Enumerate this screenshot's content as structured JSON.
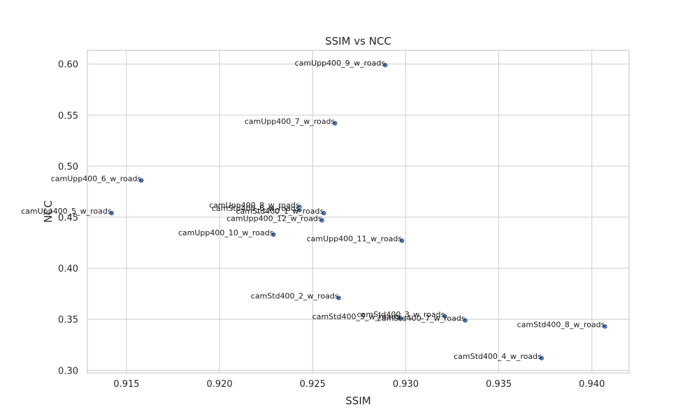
{
  "chart_data": {
    "type": "scatter",
    "title": "SSIM vs NCC",
    "xlabel": "SSIM",
    "ylabel": "NCC",
    "xlim": [
      0.9129,
      0.942
    ],
    "ylim": [
      0.2975,
      0.6135
    ],
    "xticks": [
      0.915,
      0.92,
      0.925,
      0.93,
      0.935,
      0.94
    ],
    "xtick_labels": [
      "0.915",
      "0.920",
      "0.925",
      "0.930",
      "0.935",
      "0.940"
    ],
    "yticks": [
      0.3,
      0.35,
      0.4,
      0.45,
      0.5,
      0.55,
      0.6
    ],
    "ytick_labels": [
      "0.30",
      "0.35",
      "0.40",
      "0.45",
      "0.50",
      "0.55",
      "0.60"
    ],
    "grid": true,
    "marker_color": "#4c72b0",
    "points": [
      {
        "label": "camUpp400_9_w_roads",
        "x": 0.9289,
        "y": 0.599
      },
      {
        "label": "camUpp400_7_w_roads",
        "x": 0.9262,
        "y": 0.542
      },
      {
        "label": "camUpp400_6_w_roads",
        "x": 0.9158,
        "y": 0.486
      },
      {
        "label": "camUpp400_8_w_roads",
        "x": 0.9243,
        "y": 0.46
      },
      {
        "label": "camStd400_6_w_roads",
        "x": 0.9243,
        "y": 0.457
      },
      {
        "label": "camStd400_1_w_roads",
        "x": 0.9256,
        "y": 0.454
      },
      {
        "label": "camUpp400_5_w_roads",
        "x": 0.9142,
        "y": 0.454
      },
      {
        "label": "camUpp400_12_w_roads",
        "x": 0.9255,
        "y": 0.447
      },
      {
        "label": "camUpp400_10_w_roads",
        "x": 0.9229,
        "y": 0.433
      },
      {
        "label": "camUpp400_11_w_roads",
        "x": 0.9298,
        "y": 0.427
      },
      {
        "label": "camStd400_2_w_roads",
        "x": 0.9264,
        "y": 0.371
      },
      {
        "label": "camStd400_3_w_roads",
        "x": 0.9321,
        "y": 0.353
      },
      {
        "label": "camStd400_5_w_roads",
        "x": 0.9297,
        "y": 0.351
      },
      {
        "label": "camStd400_7_w_roads",
        "x": 0.9332,
        "y": 0.349
      },
      {
        "label": "camStd400_8_w_roads",
        "x": 0.9407,
        "y": 0.343
      },
      {
        "label": "camStd400_4_w_roads",
        "x": 0.9373,
        "y": 0.312
      }
    ]
  }
}
